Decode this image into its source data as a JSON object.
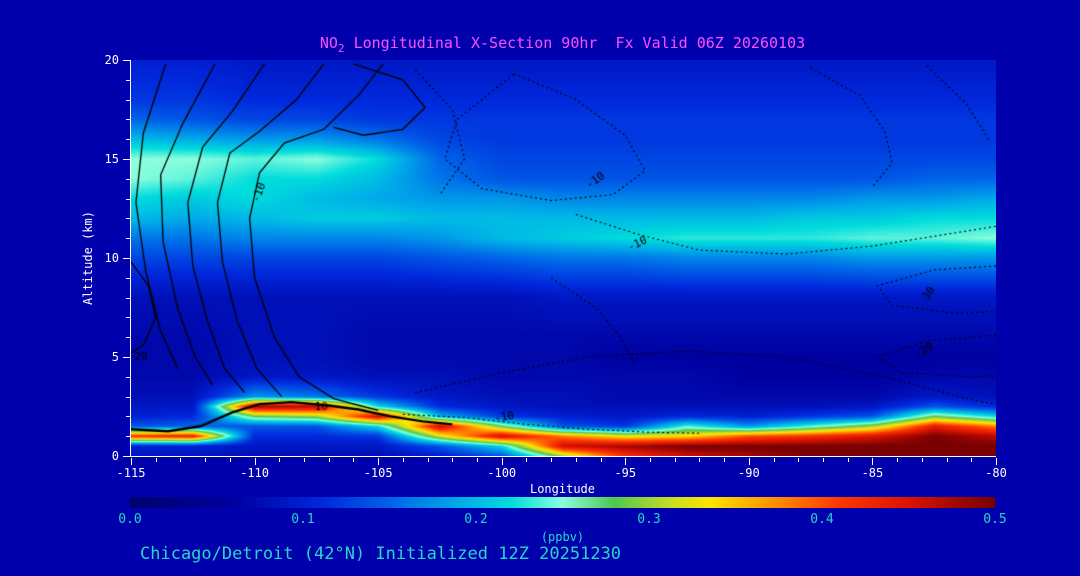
{
  "page": {
    "bg": "#0000AC"
  },
  "title": {
    "prefix": "NO",
    "subscript": "2",
    "rest": " Longitudinal X-Section 90hr  Fx Valid 06Z 20260103",
    "color": "#FF50FF"
  },
  "caption": {
    "text": "Chicago/Detroit (42°N) Initialized 12Z 20251230",
    "color": "#26D7C9"
  },
  "chart_data": {
    "type": "heatmap",
    "title": "NO2 Longitudinal X-Section 90hr  Fx Valid 06Z 20260103",
    "xlabel": "Longitude",
    "ylabel": "Altitude (km)",
    "colorbar_label": "(ppbv)",
    "x_range": [
      -115,
      -80
    ],
    "y_range": [
      0,
      20
    ],
    "x_ticks": [
      -115,
      -110,
      -105,
      -100,
      -95,
      -90,
      -85,
      -80
    ],
    "y_ticks": [
      0,
      5,
      10,
      15,
      20
    ],
    "colorbar_ticks": [
      0.0,
      0.1,
      0.2,
      0.3,
      0.4,
      0.5
    ],
    "vmin": 0.0,
    "vmax": 0.5,
    "axis_color": "#FFFFFF",
    "cbar_text_color": "#26D7C9",
    "grid": {
      "lons": [
        -115,
        -112.5,
        -110,
        -107.5,
        -105,
        -102.5,
        -100,
        -97.5,
        -95,
        -92.5,
        -90,
        -87.5,
        -85,
        -82.5,
        -80
      ],
      "alts": [
        0,
        0.5,
        1,
        1.5,
        2,
        2.5,
        3,
        4,
        5,
        6,
        8,
        10,
        11,
        12,
        13,
        14,
        15,
        16,
        17,
        18,
        20
      ],
      "values": [
        [
          0.09,
          0.1,
          0.42,
          0.14,
          0.1,
          0.09,
          0.08,
          0.07,
          0.07,
          0.07,
          0.08,
          0.13,
          0.16,
          0.2,
          0.22,
          0.25,
          0.25,
          0.2,
          0.15,
          0.12,
          0.1
        ],
        [
          0.09,
          0.1,
          0.44,
          0.15,
          0.11,
          0.09,
          0.08,
          0.07,
          0.07,
          0.07,
          0.08,
          0.13,
          0.16,
          0.19,
          0.21,
          0.24,
          0.25,
          0.19,
          0.14,
          0.12,
          0.1
        ],
        [
          0.08,
          0.09,
          0.11,
          0.14,
          0.28,
          0.48,
          0.18,
          0.09,
          0.08,
          0.08,
          0.08,
          0.13,
          0.17,
          0.2,
          0.22,
          0.22,
          0.24,
          0.18,
          0.13,
          0.11,
          0.09
        ],
        [
          0.08,
          0.09,
          0.11,
          0.14,
          0.3,
          0.47,
          0.16,
          0.09,
          0.08,
          0.08,
          0.08,
          0.13,
          0.17,
          0.21,
          0.2,
          0.22,
          0.25,
          0.18,
          0.13,
          0.11,
          0.09
        ],
        [
          0.08,
          0.09,
          0.12,
          0.22,
          0.46,
          0.22,
          0.12,
          0.08,
          0.07,
          0.07,
          0.08,
          0.13,
          0.17,
          0.21,
          0.19,
          0.2,
          0.22,
          0.16,
          0.12,
          0.11,
          0.09
        ],
        [
          0.1,
          0.14,
          0.32,
          0.46,
          0.2,
          0.11,
          0.09,
          0.08,
          0.07,
          0.07,
          0.08,
          0.14,
          0.18,
          0.2,
          0.18,
          0.16,
          0.15,
          0.13,
          0.12,
          0.11,
          0.09
        ],
        [
          0.14,
          0.22,
          0.46,
          0.28,
          0.12,
          0.09,
          0.08,
          0.07,
          0.07,
          0.07,
          0.08,
          0.15,
          0.2,
          0.2,
          0.18,
          0.14,
          0.13,
          0.12,
          0.12,
          0.11,
          0.09
        ],
        [
          0.3,
          0.46,
          0.38,
          0.14,
          0.1,
          0.08,
          0.08,
          0.07,
          0.07,
          0.07,
          0.09,
          0.16,
          0.21,
          0.2,
          0.17,
          0.14,
          0.13,
          0.12,
          0.12,
          0.11,
          0.09
        ],
        [
          0.42,
          0.48,
          0.33,
          0.12,
          0.09,
          0.08,
          0.07,
          0.07,
          0.06,
          0.07,
          0.09,
          0.16,
          0.22,
          0.2,
          0.17,
          0.14,
          0.13,
          0.12,
          0.12,
          0.11,
          0.09
        ],
        [
          0.46,
          0.5,
          0.34,
          0.24,
          0.11,
          0.08,
          0.07,
          0.07,
          0.06,
          0.07,
          0.09,
          0.17,
          0.23,
          0.2,
          0.17,
          0.14,
          0.13,
          0.12,
          0.12,
          0.11,
          0.09
        ],
        [
          0.48,
          0.5,
          0.4,
          0.18,
          0.1,
          0.08,
          0.07,
          0.06,
          0.06,
          0.07,
          0.09,
          0.17,
          0.23,
          0.2,
          0.17,
          0.14,
          0.13,
          0.12,
          0.12,
          0.11,
          0.09
        ],
        [
          0.5,
          0.5,
          0.42,
          0.24,
          0.12,
          0.08,
          0.07,
          0.06,
          0.06,
          0.07,
          0.09,
          0.17,
          0.23,
          0.21,
          0.17,
          0.14,
          0.13,
          0.12,
          0.12,
          0.11,
          0.09
        ],
        [
          0.5,
          0.5,
          0.45,
          0.3,
          0.14,
          0.09,
          0.07,
          0.06,
          0.06,
          0.07,
          0.09,
          0.18,
          0.24,
          0.21,
          0.18,
          0.14,
          0.13,
          0.12,
          0.12,
          0.11,
          0.09
        ],
        [
          0.5,
          0.5,
          0.5,
          0.44,
          0.28,
          0.14,
          0.09,
          0.07,
          0.06,
          0.07,
          0.09,
          0.18,
          0.24,
          0.22,
          0.18,
          0.15,
          0.13,
          0.12,
          0.12,
          0.11,
          0.09
        ],
        [
          0.5,
          0.5,
          0.47,
          0.38,
          0.22,
          0.11,
          0.08,
          0.07,
          0.06,
          0.07,
          0.09,
          0.18,
          0.25,
          0.22,
          0.19,
          0.15,
          0.13,
          0.12,
          0.12,
          0.11,
          0.09
        ]
      ]
    },
    "colormap": [
      [
        0.0,
        "#000070"
      ],
      [
        0.06,
        "#0000A0"
      ],
      [
        0.11,
        "#0028DC"
      ],
      [
        0.15,
        "#0064E8"
      ],
      [
        0.19,
        "#00AAE8"
      ],
      [
        0.22,
        "#00DCDC"
      ],
      [
        0.25,
        "#8CFFDC"
      ],
      [
        0.28,
        "#50C850"
      ],
      [
        0.31,
        "#BEDC28"
      ],
      [
        0.335,
        "#FFE600"
      ],
      [
        0.37,
        "#FF9600"
      ],
      [
        0.41,
        "#FF3700"
      ],
      [
        0.45,
        "#DC1400"
      ],
      [
        0.5,
        "#780000"
      ]
    ],
    "contours": {
      "solid": [
        [
          [
            -104.8,
            19.8
          ],
          [
            -105.8,
            18.2
          ],
          [
            -107.2,
            16.5
          ],
          [
            -108.8,
            15.8
          ],
          [
            -109.8,
            14.3
          ],
          [
            -110.2,
            12.0
          ],
          [
            -110.0,
            9.0
          ],
          [
            -109.2,
            6.0
          ],
          [
            -108.2,
            4.0
          ],
          [
            -106.8,
            2.9
          ],
          [
            -105.0,
            2.3
          ]
        ],
        [
          [
            -107.2,
            19.8
          ],
          [
            -108.3,
            18.0
          ],
          [
            -109.8,
            16.4
          ],
          [
            -111.0,
            15.3
          ],
          [
            -111.5,
            12.8
          ],
          [
            -111.3,
            9.8
          ],
          [
            -110.7,
            6.8
          ],
          [
            -109.9,
            4.4
          ],
          [
            -108.9,
            3.0
          ]
        ],
        [
          [
            -109.6,
            19.8
          ],
          [
            -110.9,
            17.4
          ],
          [
            -112.1,
            15.6
          ],
          [
            -112.7,
            12.8
          ],
          [
            -112.5,
            9.6
          ],
          [
            -111.9,
            6.8
          ],
          [
            -111.2,
            4.4
          ],
          [
            -110.4,
            3.2
          ]
        ],
        [
          [
            -111.6,
            19.8
          ],
          [
            -112.9,
            16.8
          ],
          [
            -113.8,
            14.2
          ],
          [
            -113.7,
            10.8
          ],
          [
            -113.1,
            7.4
          ],
          [
            -112.4,
            5.0
          ],
          [
            -111.7,
            3.6
          ]
        ],
        [
          [
            -113.6,
            19.8
          ],
          [
            -114.5,
            16.3
          ],
          [
            -114.8,
            12.8
          ],
          [
            -114.4,
            9.3
          ],
          [
            -113.8,
            6.3
          ],
          [
            -113.1,
            4.4
          ]
        ],
        [
          [
            -115.0,
            9.8
          ],
          [
            -114.3,
            8.6
          ],
          [
            -114.0,
            7.0
          ],
          [
            -114.5,
            5.6
          ],
          [
            -115.0,
            5.2
          ]
        ],
        [
          [
            -106.0,
            19.8
          ],
          [
            -104.0,
            19.0
          ],
          [
            -103.1,
            17.6
          ],
          [
            -104.0,
            16.5
          ],
          [
            -105.6,
            16.2
          ],
          [
            -106.8,
            16.6
          ]
        ]
      ],
      "solid_thick": [
        [
          [
            -115.0,
            1.35
          ],
          [
            -113.5,
            1.25
          ],
          [
            -112.2,
            1.5
          ],
          [
            -110.9,
            2.2
          ],
          [
            -109.8,
            2.62
          ],
          [
            -108.5,
            2.72
          ],
          [
            -107.0,
            2.55
          ],
          [
            -105.8,
            2.35
          ],
          [
            -104.5,
            2.0
          ],
          [
            -103.2,
            1.75
          ],
          [
            -102.0,
            1.6
          ]
        ]
      ],
      "dotted": [
        [
          [
            -99.5,
            19.3
          ],
          [
            -97.0,
            18.0
          ],
          [
            -95.0,
            16.2
          ],
          [
            -94.2,
            14.4
          ],
          [
            -95.5,
            13.2
          ],
          [
            -98.0,
            12.9
          ],
          [
            -100.8,
            13.5
          ],
          [
            -102.3,
            15.0
          ],
          [
            -101.8,
            17.0
          ],
          [
            -100.2,
            18.6
          ],
          [
            -99.5,
            19.3
          ]
        ],
        [
          [
            -97.0,
            12.2
          ],
          [
            -94.5,
            11.2
          ],
          [
            -92.0,
            10.4
          ],
          [
            -88.5,
            10.2
          ],
          [
            -85.0,
            10.6
          ],
          [
            -82.0,
            11.2
          ],
          [
            -80.0,
            11.6
          ]
        ],
        [
          [
            -80.0,
            9.6
          ],
          [
            -82.5,
            9.4
          ],
          [
            -84.8,
            8.6
          ],
          [
            -84.2,
            7.6
          ],
          [
            -81.5,
            7.2
          ],
          [
            -80.0,
            7.3
          ]
        ],
        [
          [
            -80.0,
            6.1
          ],
          [
            -82.8,
            5.8
          ],
          [
            -84.8,
            5.0
          ],
          [
            -83.8,
            4.2
          ],
          [
            -81.0,
            4.0
          ],
          [
            -80.0,
            4.05
          ]
        ],
        [
          [
            -104.0,
            2.1
          ],
          [
            -101.5,
            1.95
          ],
          [
            -99.0,
            1.6
          ],
          [
            -96.5,
            1.35
          ],
          [
            -94.0,
            1.2
          ],
          [
            -92.0,
            1.15
          ]
        ],
        [
          [
            -103.5,
            3.2
          ],
          [
            -100.0,
            4.2
          ],
          [
            -96.5,
            5.0
          ],
          [
            -92.5,
            5.3
          ],
          [
            -88.5,
            5.0
          ],
          [
            -84.5,
            4.0
          ],
          [
            -81.5,
            3.0
          ],
          [
            -80.0,
            2.6
          ]
        ],
        [
          [
            -87.5,
            19.6
          ],
          [
            -85.5,
            18.2
          ],
          [
            -84.5,
            16.4
          ],
          [
            -84.2,
            14.8
          ],
          [
            -85.0,
            13.6
          ]
        ],
        [
          [
            -82.8,
            19.7
          ],
          [
            -81.2,
            17.8
          ],
          [
            -80.3,
            16.0
          ]
        ],
        [
          [
            -103.5,
            19.5
          ],
          [
            -102.0,
            17.5
          ],
          [
            -101.5,
            15.0
          ],
          [
            -102.5,
            13.2
          ]
        ],
        [
          [
            -98.0,
            9.0
          ],
          [
            -96.2,
            7.5
          ],
          [
            -95.2,
            6.0
          ],
          [
            -94.6,
            4.6
          ]
        ]
      ],
      "labels": [
        {
          "text": "-10",
          "lon": -109.8,
          "alt": 13.3,
          "rot": -70
        },
        {
          "text": "20",
          "lon": -114.6,
          "alt": 5.0,
          "rot": 0
        },
        {
          "text": "10",
          "lon": -107.3,
          "alt": 2.45,
          "rot": 0
        },
        {
          "text": "-10",
          "lon": -96.2,
          "alt": 13.9,
          "rot": -35
        },
        {
          "text": "-10",
          "lon": -94.5,
          "alt": 10.7,
          "rot": -25
        },
        {
          "text": "30",
          "lon": -82.7,
          "alt": 8.2,
          "rot": -55
        },
        {
          "text": "-20",
          "lon": -82.9,
          "alt": 5.3,
          "rot": -35
        },
        {
          "text": "-10",
          "lon": -99.9,
          "alt": 1.95,
          "rot": -10
        }
      ]
    }
  }
}
